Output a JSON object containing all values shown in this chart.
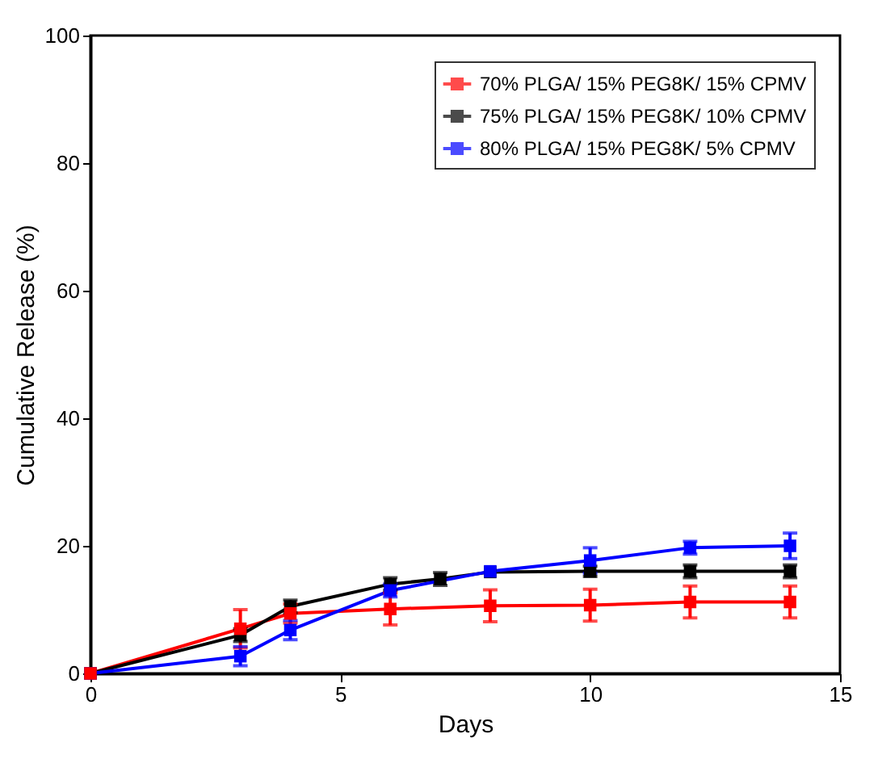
{
  "chart_data": {
    "type": "line",
    "xlabel": "Days",
    "ylabel": "Cumulative Release (%)",
    "xlim": [
      0,
      15
    ],
    "xticks": [
      0,
      5,
      10,
      15
    ],
    "ylim": [
      0,
      100
    ],
    "yticks": [
      0,
      20,
      40,
      60,
      80,
      100
    ],
    "grid": false,
    "legend": "top right",
    "marker": "square",
    "line_style": "solid",
    "series": [
      {
        "name": "70% PLGA/ 15% PEG8K/ 15% CPMV",
        "color": "#ff0000",
        "x": [
          0,
          3,
          4,
          6,
          8,
          10,
          12,
          14
        ],
        "values": [
          0,
          7,
          9.4,
          10.1,
          10.6,
          10.7,
          11.2,
          11.2
        ],
        "errors": [
          null,
          3,
          1.5,
          2.5,
          2.5,
          2.5,
          2.5,
          2.5
        ]
      },
      {
        "name": "75% PLGA/ 15% PEG8K/ 10% CPMV",
        "color": "#000000",
        "x": [
          0,
          3,
          4,
          6,
          7,
          8,
          10,
          12,
          14
        ],
        "values": [
          0,
          6,
          10.5,
          14,
          14.8,
          15.9,
          16,
          16,
          16
        ],
        "errors": [
          null,
          1,
          1,
          1,
          1,
          null,
          0.8,
          1,
          1
        ]
      },
      {
        "name": "80% PLGA/ 15% PEG8K/ 5% CPMV",
        "color": "#0000ff",
        "x": [
          0,
          3,
          4,
          6,
          8,
          10,
          12,
          14
        ],
        "values": [
          0,
          2.7,
          6.8,
          13,
          16,
          17.7,
          19.7,
          20
        ],
        "errors": [
          null,
          1.5,
          1.5,
          1,
          null,
          2,
          1,
          2
        ]
      }
    ]
  }
}
